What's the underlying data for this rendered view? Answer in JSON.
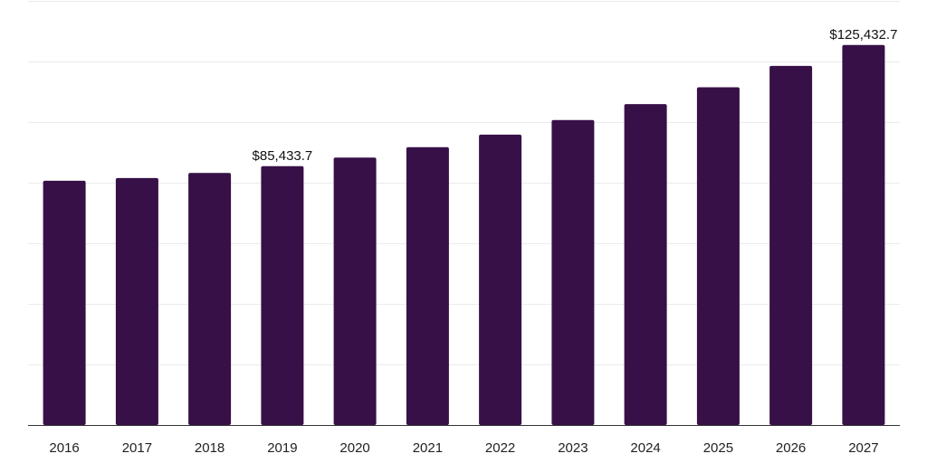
{
  "chart_data": {
    "type": "bar",
    "categories": [
      "2016",
      "2017",
      "2018",
      "2019",
      "2020",
      "2021",
      "2022",
      "2023",
      "2024",
      "2025",
      "2026",
      "2027"
    ],
    "values": [
      80633.2,
      81521.4,
      83214.6,
      85433.7,
      88256.3,
      91702.8,
      95853.5,
      100662.4,
      105926.7,
      111478.2,
      118533.1,
      125432.7
    ],
    "data_labels": [
      null,
      null,
      null,
      "$85,433.7",
      null,
      null,
      null,
      null,
      null,
      null,
      null,
      "$125,432.7"
    ],
    "title": "",
    "xlabel": "",
    "ylabel": "",
    "ylim": [
      0,
      140000
    ],
    "y_gridlines": [
      0,
      20000,
      40000,
      60000,
      80000,
      100000,
      120000,
      140000
    ],
    "grid": true,
    "legend": "none",
    "bar_color": "#371047"
  }
}
